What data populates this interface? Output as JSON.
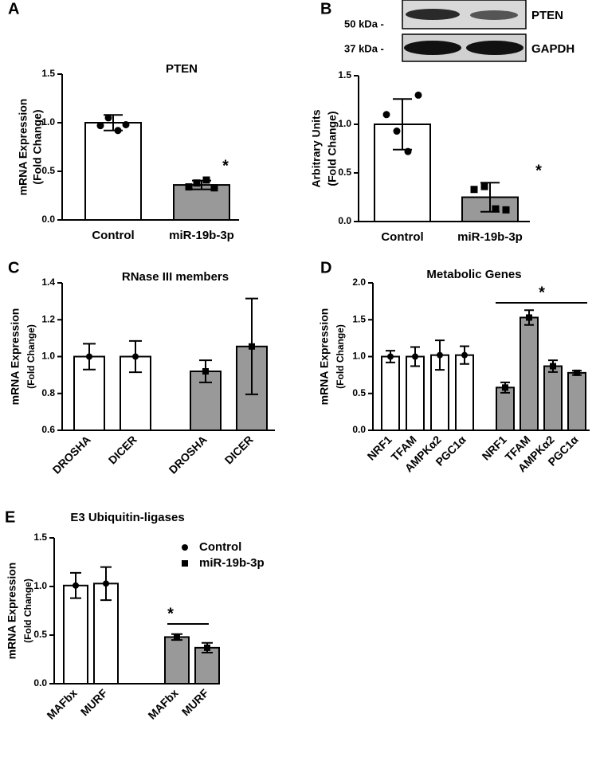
{
  "chart_data": [
    {
      "type": "bar",
      "panel": "A",
      "title": "PTEN",
      "ylabel": [
        "mRNA Expression",
        "(Fold  Change)"
      ],
      "categories": [
        "Control",
        "miR-19b-3p"
      ],
      "values": [
        1.0,
        0.36
      ],
      "errors": [
        0.08,
        0.045
      ],
      "colors": [
        "#ffffff",
        "#999999"
      ],
      "markers": [
        "circle",
        "square"
      ],
      "points": [
        [
          0.97,
          1.05,
          0.92,
          0.98
        ],
        [
          0.34,
          0.38,
          0.41,
          0.33
        ]
      ],
      "ylim": [
        0,
        1.5
      ],
      "yticks": [
        {
          "value": 0,
          "label": "0.0"
        },
        0.5,
        {
          "value": 1,
          "label": "1.0"
        },
        1.5
      ],
      "annotations": [
        "*"
      ]
    },
    {
      "type": "bar",
      "panel": "B",
      "ylabel": [
        "Arbitrary Units",
        "(Fold Change)"
      ],
      "blot": {
        "markers": [
          "50 kDa -",
          "37 kDa -"
        ],
        "proteins": [
          "PTEN",
          "GAPDH"
        ]
      },
      "categories": [
        "Control",
        "miR-19b-3p"
      ],
      "values": [
        1.0,
        0.25
      ],
      "errors": [
        0.26,
        0.15
      ],
      "colors": [
        "#ffffff",
        "#999999"
      ],
      "markers": [
        "circle",
        "square"
      ],
      "points": [
        [
          1.1,
          1.3,
          0.93,
          0.72
        ],
        [
          0.33,
          0.12,
          0.36,
          0.13
        ]
      ],
      "ylim": [
        0,
        1.5
      ],
      "yticks": [
        {
          "value": 0,
          "label": "0.0"
        },
        0.5,
        {
          "value": 1,
          "label": "1.0"
        },
        1.5
      ],
      "annotations": [
        "*"
      ]
    },
    {
      "type": "bar",
      "panel": "C",
      "title": "RNase III members",
      "ylabel": [
        "mRNA Expression",
        "(Fold Change)"
      ],
      "categories": [
        "DROSHA",
        "DICER",
        "DROSHA",
        "DICER"
      ],
      "values": [
        1.0,
        1.0,
        0.92,
        1.055
      ],
      "errors": [
        0.07,
        0.085,
        0.06,
        0.26
      ],
      "colors": [
        "#ffffff",
        "#ffffff",
        "#999999",
        "#999999"
      ],
      "markers": [
        "circle",
        "circle",
        "square",
        "square"
      ],
      "ylim": [
        0.6,
        1.4
      ],
      "yticks": [
        0.6,
        0.8,
        {
          "value": 1,
          "label": "1.0"
        },
        1.2,
        1.4
      ]
    },
    {
      "type": "bar",
      "panel": "D",
      "title": "Metabolic Genes",
      "ylabel": [
        "mRNA Expression",
        "(Fold Change)"
      ],
      "categories": [
        "NRF1",
        "TFAM",
        "AMPKα2",
        "PGC1α",
        "NRF1",
        "TFAM",
        "AMPKα2",
        "PGC1α"
      ],
      "values": [
        1.0,
        1.0,
        1.02,
        1.02,
        0.58,
        1.53,
        0.87,
        0.78
      ],
      "errors": [
        0.08,
        0.13,
        0.2,
        0.12,
        0.07,
        0.1,
        0.08,
        0.03
      ],
      "colors": [
        "#ffffff",
        "#ffffff",
        "#ffffff",
        "#ffffff",
        "#999999",
        "#999999",
        "#999999",
        "#999999"
      ],
      "markers": [
        "circle",
        "circle",
        "circle",
        "circle",
        "square",
        "square",
        "square",
        "square"
      ],
      "ylim": [
        0,
        2.0
      ],
      "yticks": [
        {
          "value": 0,
          "label": "0.0"
        },
        0.5,
        {
          "value": 1,
          "label": "1.0"
        },
        1.5,
        {
          "value": 2,
          "label": "2.0"
        }
      ],
      "annotations": [
        "*"
      ]
    },
    {
      "type": "bar",
      "panel": "E",
      "title": "E3 Ubiquitin-ligases",
      "ylabel": [
        "mRNA Expression",
        "(Fold Change)"
      ],
      "categories": [
        "MAFbx",
        "MURF",
        "MAFbx",
        "MURF"
      ],
      "values": [
        1.01,
        1.03,
        0.48,
        0.37
      ],
      "errors": [
        0.13,
        0.17,
        0.03,
        0.05
      ],
      "colors": [
        "#ffffff",
        "#ffffff",
        "#999999",
        "#999999"
      ],
      "markers": [
        "circle",
        "circle",
        "square",
        "square"
      ],
      "ylim": [
        0,
        1.5
      ],
      "yticks": [
        {
          "value": 0,
          "label": "0.0"
        },
        0.5,
        {
          "value": 1,
          "label": "1.0"
        },
        1.5
      ],
      "legend": [
        {
          "label": "Control",
          "marker": "circle"
        },
        {
          "label": "miR-19b-3p",
          "marker": "square"
        }
      ],
      "annotations": [
        "*"
      ]
    }
  ]
}
